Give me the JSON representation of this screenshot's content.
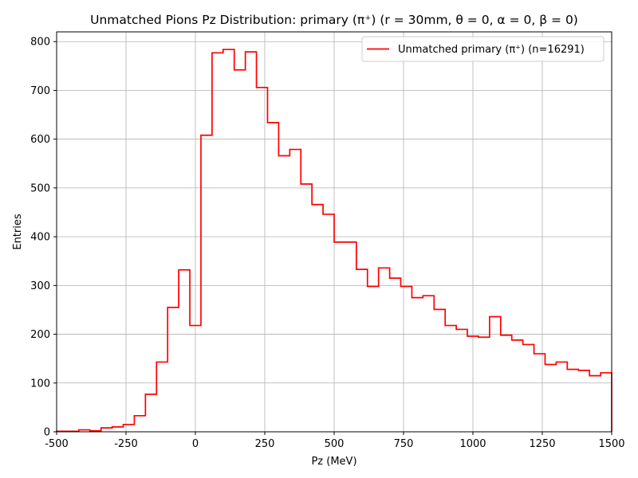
{
  "chart_data": {
    "type": "step-histogram",
    "title": "Unmatched Pions Pz Distribution: primary (π⁺) (r = 30mm, θ = 0, α = 0, β = 0)",
    "xlabel": "Pz (MeV)",
    "ylabel": "Entries",
    "xlim": [
      -500,
      1500
    ],
    "ylim": [
      0,
      820
    ],
    "xticks": [
      -500,
      -250,
      0,
      250,
      500,
      750,
      1000,
      1250,
      1500
    ],
    "yticks": [
      0,
      100,
      200,
      300,
      400,
      500,
      600,
      700,
      800
    ],
    "grid": true,
    "legend_position": "top-right",
    "series": [
      {
        "name": "Unmatched primary (π⁺) (n=16291)",
        "color": "#ff0000",
        "bin_edges": [
          -500,
          -460,
          -420,
          -380,
          -340,
          -300,
          -260,
          -220,
          -180,
          -140,
          -100,
          -60,
          -20,
          20,
          60,
          100,
          140,
          180,
          220,
          260,
          300,
          340,
          380,
          420,
          460,
          500,
          540,
          580,
          620,
          660,
          700,
          740,
          780,
          820,
          860,
          900,
          940,
          980,
          1020,
          1060,
          1100,
          1140,
          1180,
          1220,
          1260,
          1300,
          1340,
          1380,
          1420,
          1460,
          1500
        ],
        "counts": [
          1,
          1,
          4,
          2,
          8,
          10,
          15,
          33,
          77,
          143,
          255,
          332,
          218,
          608,
          777,
          784,
          742,
          779,
          706,
          634,
          566,
          579,
          508,
          466,
          446,
          389,
          389,
          333,
          298,
          336,
          315,
          298,
          275,
          279,
          251,
          218,
          210,
          196,
          194,
          236,
          198,
          188,
          179,
          160,
          138,
          143,
          128,
          126,
          115,
          121
        ]
      }
    ]
  }
}
